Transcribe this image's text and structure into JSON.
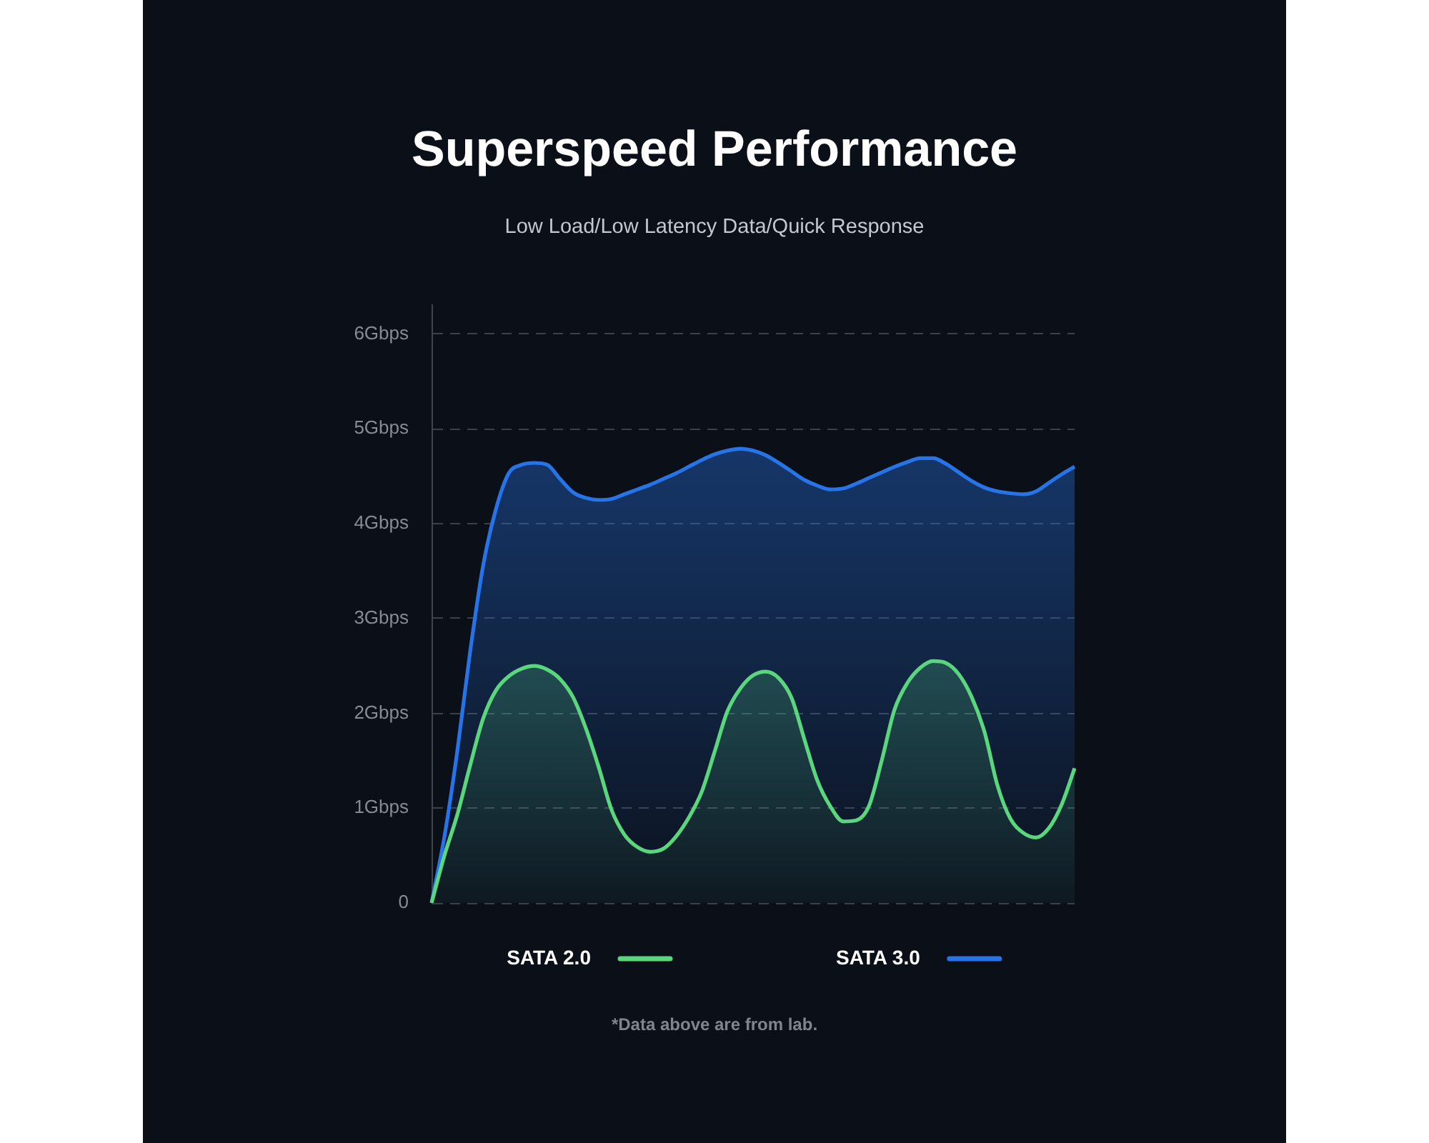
{
  "chart_data": {
    "type": "area",
    "title": "Superspeed Performance",
    "subtitle": "Low Load/Low Latency Data/Quick Response",
    "categories": [
      null,
      null,
      null,
      null,
      null,
      null,
      null,
      null,
      null,
      null,
      null,
      null,
      null,
      null,
      null,
      null,
      null,
      null,
      null,
      null,
      null,
      null,
      null,
      null,
      null,
      null,
      null,
      null,
      null,
      null,
      null,
      null,
      null,
      null,
      null,
      null,
      null,
      null,
      null,
      null,
      null,
      null,
      null,
      null,
      null,
      null,
      null,
      null,
      null,
      null,
      null
    ],
    "series": [
      {
        "name": "SATA 2.0",
        "color": "#5ad67d",
        "values": [
          0,
          0.5,
          0.93,
          1.45,
          1.94,
          2.24,
          2.39,
          2.47,
          2.5,
          2.46,
          2.36,
          2.17,
          1.84,
          1.43,
          0.98,
          0.72,
          0.59,
          0.54,
          0.57,
          0.7,
          0.9,
          1.17,
          1.59,
          2.02,
          2.26,
          2.4,
          2.44,
          2.37,
          2.16,
          1.72,
          1.29,
          1.02,
          0.86,
          0.87,
          1.02,
          1.5,
          2.04,
          2.32,
          2.48,
          2.55,
          2.53,
          2.41,
          2.17,
          1.8,
          1.24,
          0.89,
          0.74,
          0.69,
          0.79,
          1.04,
          1.42
        ]
      },
      {
        "name": "SATA 3.0",
        "color": "#2774e8",
        "values": [
          0,
          0.7,
          1.6,
          2.65,
          3.55,
          4.15,
          4.53,
          4.62,
          4.64,
          4.62,
          4.47,
          4.33,
          4.27,
          4.25,
          4.26,
          4.31,
          4.36,
          4.41,
          4.47,
          4.53,
          4.6,
          4.67,
          4.73,
          4.77,
          4.79,
          4.77,
          4.72,
          4.64,
          4.55,
          4.46,
          4.4,
          4.36,
          4.37,
          4.42,
          4.48,
          4.54,
          4.6,
          4.65,
          4.69,
          4.69,
          4.63,
          4.54,
          4.45,
          4.38,
          4.34,
          4.32,
          4.31,
          4.34,
          4.43,
          4.52,
          4.6
        ]
      }
    ],
    "ylim": [
      0,
      6.3
    ],
    "yticks": [
      0,
      {
        "value": 1,
        "label": "1Gbps"
      },
      {
        "value": 2,
        "label": "2Gbps"
      },
      {
        "value": 3,
        "label": "3Gbps"
      },
      {
        "value": 4,
        "label": "4Gbps"
      },
      {
        "value": 5,
        "label": "5Gbps"
      },
      {
        "value": 6,
        "label": "6Gbps"
      }
    ],
    "grid": "y",
    "legend": "bottom",
    "marker": "none",
    "annotations": [
      "*Data above are from lab."
    ]
  }
}
